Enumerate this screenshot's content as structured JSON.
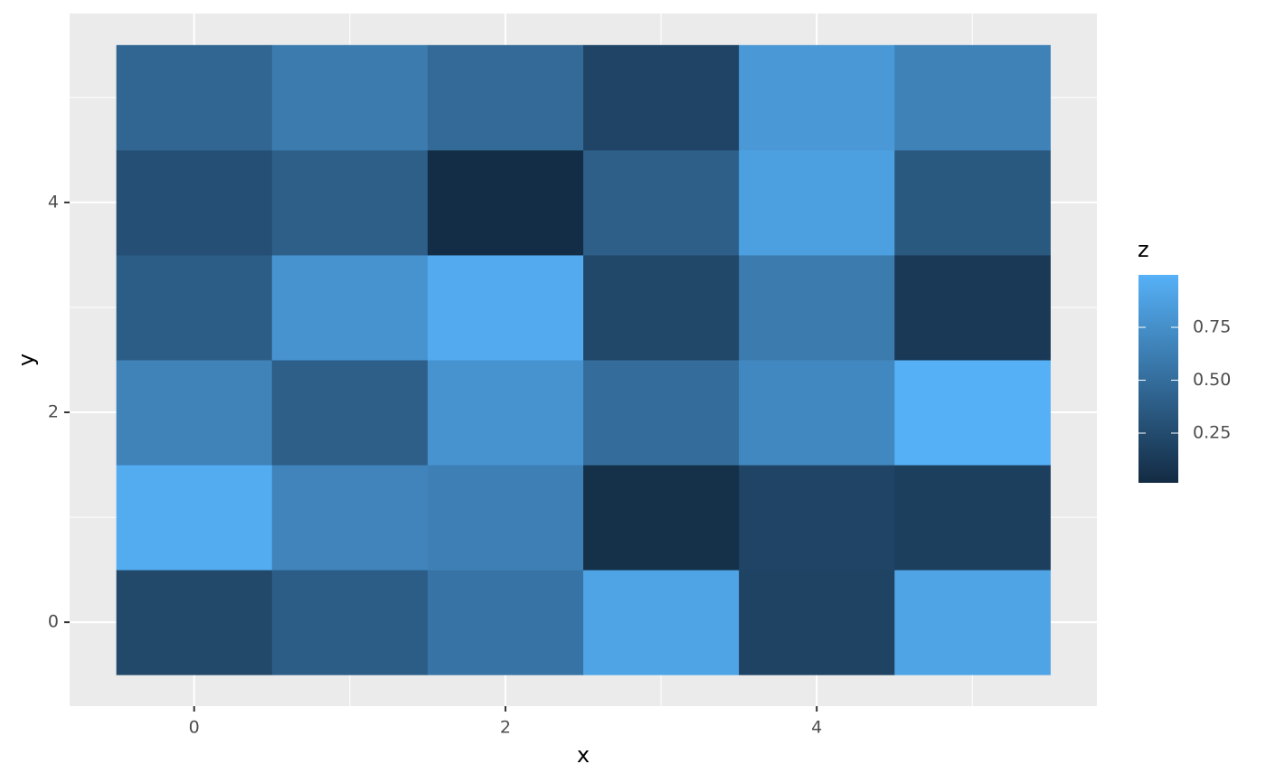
{
  "chart_data": {
    "type": "heatmap",
    "x_label": "x",
    "y_label": "y",
    "legend_title": "z",
    "x": [
      0,
      1,
      2,
      3,
      4,
      5
    ],
    "y": [
      0,
      1,
      2,
      3,
      4,
      5
    ],
    "z": [
      [
        0.23,
        0.38,
        0.55,
        0.9,
        0.19,
        0.9
      ],
      [
        0.96,
        0.67,
        0.64,
        0.05,
        0.2,
        0.16
      ],
      [
        0.66,
        0.4,
        0.78,
        0.5,
        0.7,
        0.99
      ],
      [
        0.38,
        0.78,
        0.95,
        0.22,
        0.6,
        0.12
      ],
      [
        0.28,
        0.4,
        0.03,
        0.4,
        0.87,
        0.35
      ],
      [
        0.45,
        0.6,
        0.48,
        0.2,
        0.82,
        0.65
      ]
    ],
    "xlim": [
      -0.8,
      5.8
    ],
    "ylim": [
      -0.8,
      5.8
    ],
    "xticks": [
      0,
      2,
      4
    ],
    "yticks": [
      0,
      2,
      4
    ],
    "xminor": [
      1,
      3,
      5
    ],
    "yminor": [
      1,
      3,
      5
    ],
    "grid": true,
    "colors": [
      "#132B43",
      "#56B1F7"
    ],
    "zlim": [
      0.015,
      0.998
    ],
    "zticks": [
      0.25,
      {
        "value": 0.5,
        "label": "0.50"
      },
      0.75
    ]
  }
}
